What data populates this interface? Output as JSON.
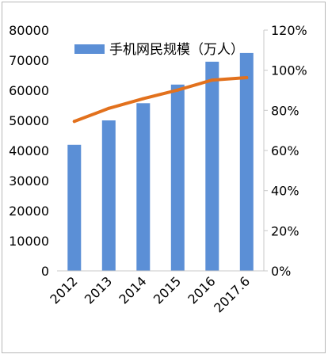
{
  "chart_data": {
    "type": "bar",
    "categories": [
      "2012",
      "2013",
      "2014",
      "2015",
      "2016",
      "2017.6"
    ],
    "series": [
      {
        "name": "手机网民规模（万人）",
        "type": "bar",
        "axis": "left",
        "color": "#5b8fd6",
        "values": [
          41900,
          50000,
          55700,
          61900,
          69500,
          72400
        ]
      },
      {
        "type": "line",
        "axis": "right",
        "color": "#e2711d",
        "values": [
          74.5,
          81.0,
          85.8,
          90.1,
          95.1,
          96.3
        ]
      }
    ],
    "y_left": {
      "min": 0,
      "max": 80000,
      "ticks": [
        "0",
        "10000",
        "20000",
        "30000",
        "40000",
        "50000",
        "60000",
        "70000",
        "80000"
      ]
    },
    "y_right": {
      "min": 0,
      "max": 120,
      "ticks": [
        "0%",
        "20%",
        "40%",
        "60%",
        "80%",
        "100%",
        "120%"
      ]
    },
    "grid": false,
    "legend_position": "top-left"
  }
}
